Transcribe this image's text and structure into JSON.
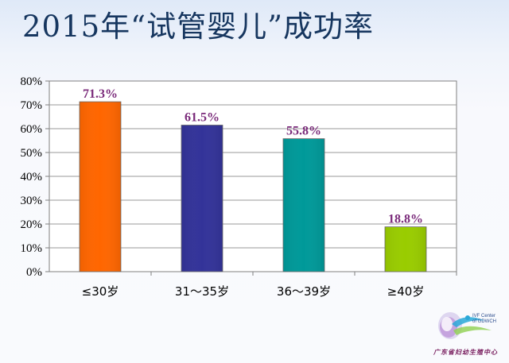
{
  "slide": {
    "title": "2015年“试管婴儿”成功率"
  },
  "logo": {
    "name_cn": "广东省妇幼生殖中心",
    "name_en": "IVF Center\nof GDWCH"
  },
  "colors": {
    "title": "#16365f",
    "value_label": "#7a2a7a",
    "bar_1": "#ff6600",
    "bar_2": "#333399",
    "bar_3": "#009999",
    "bar_4": "#99cc00"
  },
  "chart_data": {
    "type": "bar",
    "categories": [
      "≤30岁",
      "31～35岁",
      "36～39岁",
      "≥40岁"
    ],
    "values": [
      71.3,
      61.5,
      55.8,
      18.8
    ],
    "value_labels": [
      "71.3%",
      "61.5%",
      "55.8%",
      "18.8%"
    ],
    "bar_colors": [
      "#ff6600",
      "#333399",
      "#009999",
      "#99cc00"
    ],
    "ylim": [
      0,
      80
    ],
    "yticks": [
      "0%",
      "10%",
      "20%",
      "30%",
      "40%",
      "50%",
      "60%",
      "70%",
      "80%"
    ],
    "grid": true,
    "legend": "none",
    "title": "2015年“试管婴儿”成功率",
    "xlabel": "",
    "ylabel": ""
  }
}
